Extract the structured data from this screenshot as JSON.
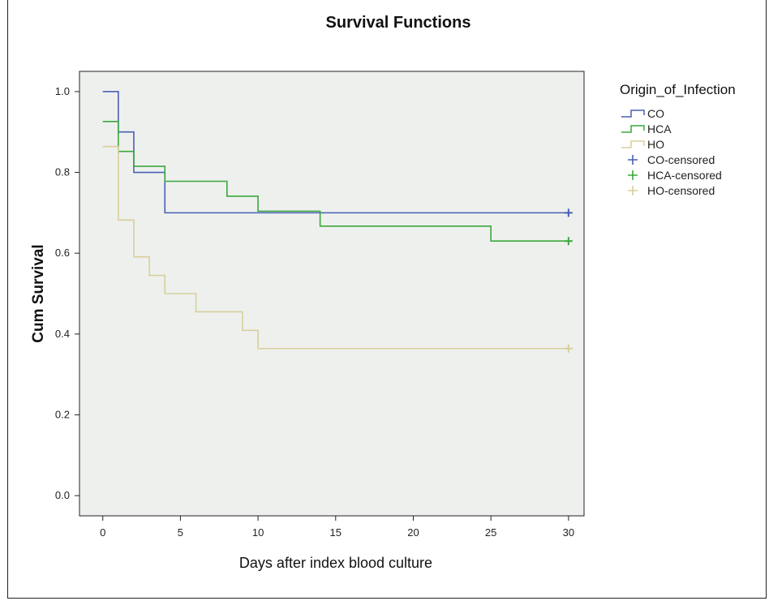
{
  "chart_data": {
    "type": "line",
    "subtype": "kaplan-meier step",
    "title": "Survival Functions",
    "xlabel": "Days after index blood culture",
    "ylabel": "Cum Survival",
    "xlim": [
      -1.5,
      31
    ],
    "ylim": [
      -0.05,
      1.05
    ],
    "x_ticks": [
      0,
      5,
      10,
      15,
      20,
      25,
      30
    ],
    "y_ticks": [
      "0.0",
      "0.2",
      "0.4",
      "0.6",
      "0.8",
      "1.0"
    ],
    "grid": false,
    "plot_background": "#eef0ee",
    "legend": {
      "title": "Origin_of_Infection",
      "placement": "right"
    },
    "series": [
      {
        "name": "CO",
        "color": "#4a5fb5",
        "steps": [
          [
            0,
            1.0
          ],
          [
            1,
            0.9
          ],
          [
            2,
            0.8
          ],
          [
            4,
            0.7
          ],
          [
            30,
            0.7
          ]
        ],
        "censored": [
          30
        ],
        "censored_label": "CO-censored"
      },
      {
        "name": "HCA",
        "color": "#3aa83a",
        "steps": [
          [
            0,
            0.926
          ],
          [
            1,
            0.852
          ],
          [
            2,
            0.815
          ],
          [
            4,
            0.778
          ],
          [
            8,
            0.741
          ],
          [
            10,
            0.704
          ],
          [
            14,
            0.667
          ],
          [
            25,
            0.63
          ],
          [
            30,
            0.63
          ]
        ],
        "censored": [
          30
        ],
        "censored_label": "HCA-censored"
      },
      {
        "name": "HO",
        "color": "#d8cf99",
        "steps": [
          [
            0,
            0.864
          ],
          [
            1,
            0.682
          ],
          [
            2,
            0.591
          ],
          [
            3,
            0.545
          ],
          [
            4,
            0.5
          ],
          [
            6,
            0.455
          ],
          [
            9,
            0.409
          ],
          [
            10,
            0.364
          ],
          [
            30,
            0.364
          ]
        ],
        "censored": [
          30
        ],
        "censored_label": "HO-censored"
      }
    ]
  }
}
